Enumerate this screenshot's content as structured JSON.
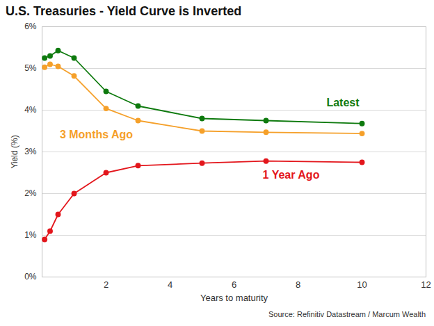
{
  "chart_data": {
    "type": "line",
    "title": "U.S. Treasuries - Yield Curve is Inverted",
    "source": "Source: Refinitiv Datastream / Marcum Wealth",
    "x_label": "Years to maturity",
    "y_label": "Yield (%)",
    "x": [
      0.08,
      0.25,
      0.5,
      1,
      2,
      3,
      5,
      7,
      10
    ],
    "series": [
      {
        "name": "Latest",
        "color": "#0e7a0e",
        "values": [
          5.25,
          5.3,
          5.43,
          5.25,
          4.45,
          4.1,
          3.8,
          3.75,
          3.68
        ]
      },
      {
        "name": "3 Months Ago",
        "color": "#f5a02a",
        "values": [
          5.03,
          5.1,
          5.05,
          4.82,
          4.04,
          3.75,
          3.5,
          3.47,
          3.44
        ]
      },
      {
        "name": "1 Year Ago",
        "color": "#e3161c",
        "values": [
          0.9,
          1.1,
          1.5,
          2.0,
          2.5,
          2.67,
          2.73,
          2.78,
          2.75
        ]
      }
    ],
    "xlim": [
      0,
      12
    ],
    "xticks": [
      2,
      4,
      6,
      8,
      10,
      12
    ],
    "ylim": [
      0,
      6
    ],
    "yticks": [
      {
        "value": 0,
        "label": "0%"
      },
      {
        "value": 1,
        "label": "1%"
      },
      {
        "value": 2,
        "label": "2%"
      },
      {
        "value": 3,
        "label": "3%"
      },
      {
        "value": 4,
        "label": "4%"
      },
      {
        "value": 5,
        "label": "5%"
      },
      {
        "value": 6,
        "label": "6%"
      }
    ],
    "grid": true,
    "marker": "circle",
    "line_style": "solid"
  }
}
